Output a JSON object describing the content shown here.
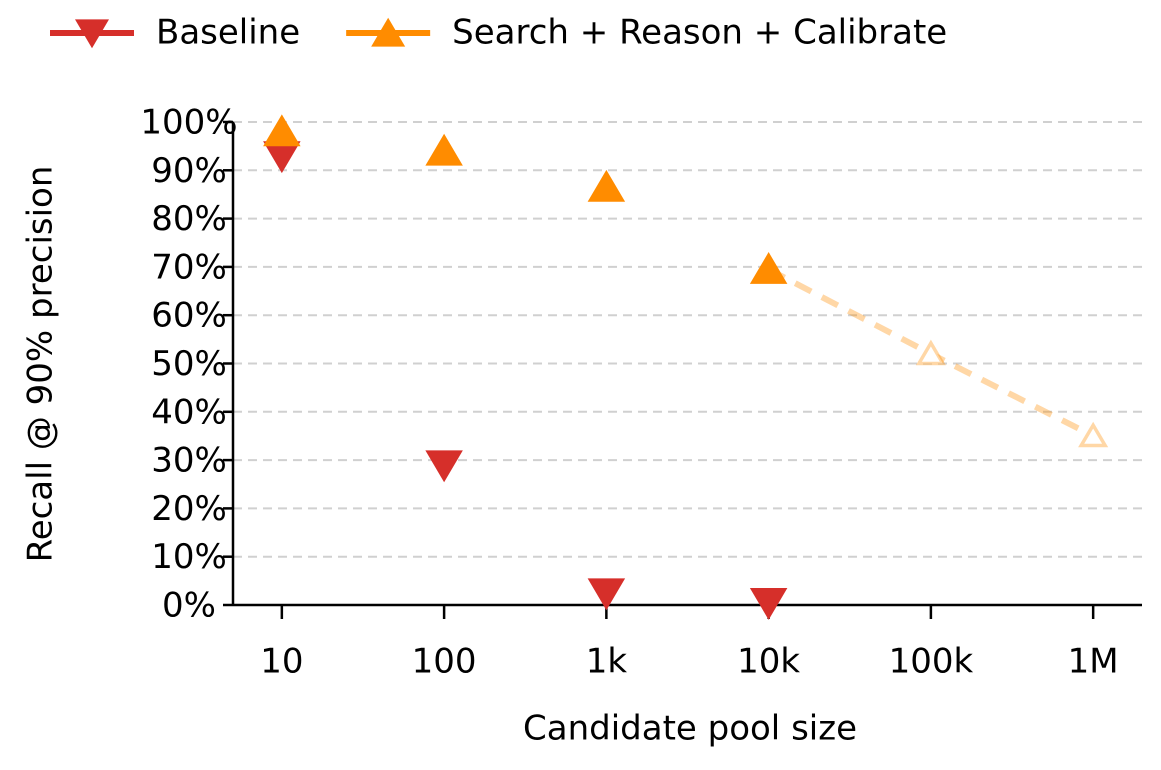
{
  "chart_data": {
    "type": "line",
    "x_label": "Candidate pool size",
    "y_label": "Recall @ 90% precision",
    "x": [
      10,
      100,
      1000,
      10000,
      100000,
      1000000
    ],
    "x_log": true,
    "xlim": [
      5,
      2000000
    ],
    "xticks": [
      10,
      100,
      {
        "value": 1000,
        "label": "1k"
      },
      {
        "value": 10000,
        "label": "10k"
      },
      {
        "value": 100000,
        "label": "100k"
      },
      {
        "value": 1000000,
        "label": "1M"
      }
    ],
    "ylim": [
      0,
      100
    ],
    "yticks": [
      {
        "value": 0,
        "label": "0%"
      },
      {
        "value": 10,
        "label": "10%"
      },
      {
        "value": 20,
        "label": "20%"
      },
      {
        "value": 30,
        "label": "30%"
      },
      {
        "value": 40,
        "label": "40%"
      },
      {
        "value": 50,
        "label": "50%"
      },
      {
        "value": 60,
        "label": "60%"
      },
      {
        "value": 70,
        "label": "70%"
      },
      {
        "value": 80,
        "label": "80%"
      },
      {
        "value": 90,
        "label": "90%"
      },
      {
        "value": 100,
        "label": "100%"
      }
    ],
    "grid": true,
    "legend": "top",
    "series": [
      {
        "name": "Baseline",
        "color": "#d62f2a",
        "marker": "down",
        "values": [
          93,
          29,
          2.5,
          0.5,
          null,
          null
        ]
      },
      {
        "name": "Search + Reason + Calibrate",
        "color": "#ff8c00",
        "marker": "up",
        "values": [
          98,
          94,
          86.5,
          69.5,
          52,
          35
        ],
        "projected": [
          false,
          false,
          false,
          false,
          true,
          true
        ]
      }
    ]
  }
}
